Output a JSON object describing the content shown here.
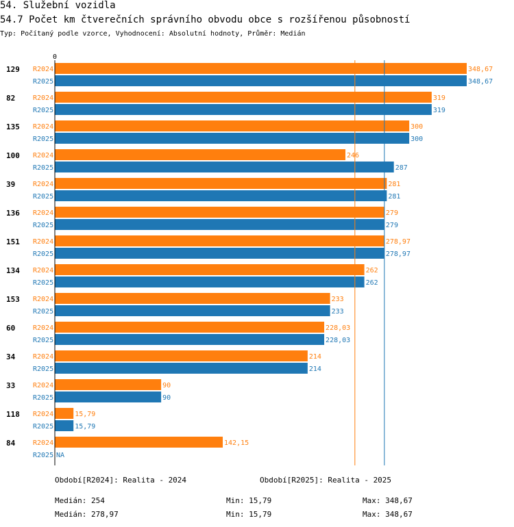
{
  "header": {
    "section_title": "54. Služební vozidla",
    "chart_title": "54.7 Počet km čtverečních správního obvodu obce s rozšířenou působností",
    "subtitle": "Typ: Počítaný podle vzorce, Vyhodnocení: Absolutní hodnoty, Průměr: Medián"
  },
  "colors": {
    "r2024": "#ff7f0e",
    "r2025": "#1f77b4",
    "axis": "#000000"
  },
  "chart_data": {
    "type": "bar",
    "orientation": "horizontal",
    "axis_zero_label": "0",
    "xlim": [
      0,
      348.67
    ],
    "categories": [
      "129",
      "82",
      "135",
      "100",
      "39",
      "136",
      "151",
      "134",
      "153",
      "60",
      "34",
      "33",
      "118",
      "84"
    ],
    "series": [
      {
        "name": "R2024",
        "values": [
          348.67,
          319,
          300,
          246,
          281,
          279,
          278.97,
          262,
          233,
          228.03,
          214,
          90,
          15.79,
          142.15
        ],
        "labels": [
          "348,67",
          "319",
          "300",
          "246",
          "281",
          "279",
          "278,97",
          "262",
          "233",
          "228,03",
          "214",
          "90",
          "15,79",
          "142,15"
        ]
      },
      {
        "name": "R2025",
        "values": [
          348.67,
          319,
          300,
          287,
          281,
          279,
          278.97,
          262,
          233,
          228.03,
          214,
          90,
          15.79,
          null
        ],
        "labels": [
          "348,67",
          "319",
          "300",
          "287",
          "281",
          "279",
          "278,97",
          "262",
          "233",
          "228,03",
          "214",
          "90",
          "15,79",
          "NA"
        ]
      }
    ],
    "median_lines": [
      {
        "series": "R2024",
        "value": 254
      },
      {
        "series": "R2025",
        "value": 278.97
      }
    ]
  },
  "legend": {
    "r2024": "Období[R2024]: Realita - 2024",
    "r2025": "Období[R2025]: Realita - 2025"
  },
  "stats": {
    "r2024": {
      "median": "Medián: 254",
      "min": "Min: 15,79",
      "max": "Max: 348,67"
    },
    "r2025": {
      "median": "Medián: 278,97",
      "min": "Min: 15,79",
      "max": "Max: 348,67"
    }
  }
}
